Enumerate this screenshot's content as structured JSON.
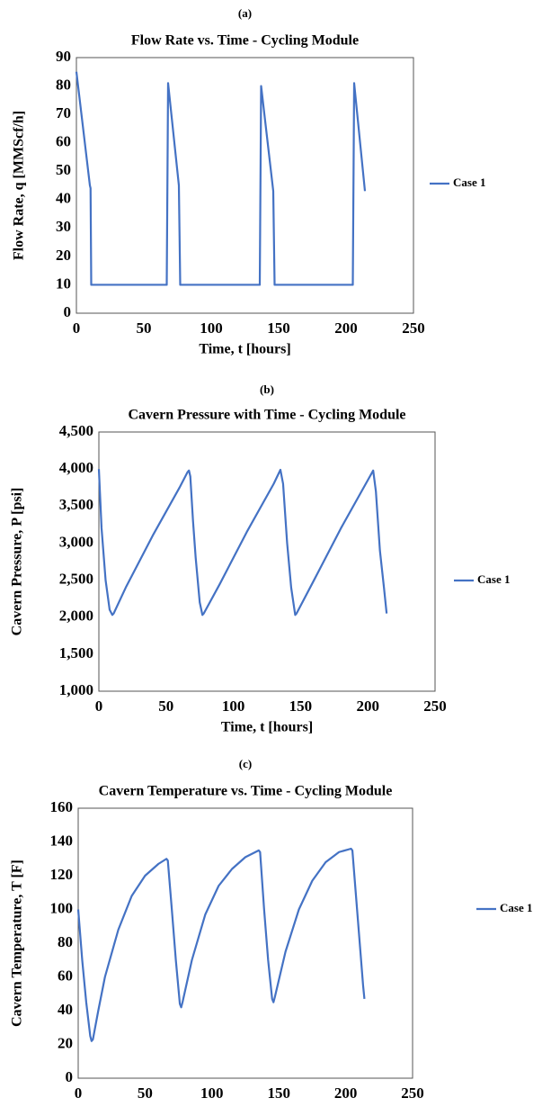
{
  "chart_data": [
    {
      "type": "line",
      "panel_label": "(a)",
      "title": "Flow Rate vs. Time - Cycling Module",
      "x_label": "Time, t [hours]",
      "y_label": "Flow Rate, q [MMScf/h]",
      "xlim": [
        0,
        250
      ],
      "xticks": [
        0,
        50,
        100,
        150,
        200,
        250
      ],
      "ylim": [
        0,
        90
      ],
      "yticks": [
        0,
        10,
        20,
        30,
        40,
        50,
        60,
        70,
        80,
        90
      ],
      "grid": false,
      "x": [
        0,
        10,
        10.5,
        11,
        67,
        68,
        76,
        77,
        136,
        137,
        146,
        147,
        205,
        206,
        214
      ],
      "series": [
        {
          "name": "Case 1",
          "color": "#4472c4",
          "values": [
            85,
            45,
            44,
            10,
            10,
            81,
            45,
            10,
            10,
            80,
            43,
            10,
            10,
            81,
            43
          ]
        }
      ]
    },
    {
      "type": "line",
      "panel_label": "(b)",
      "title": "Cavern Pressure with Time - Cycling Module",
      "x_label": "Time, t [hours]",
      "y_label": "Cavern Pressure, P [psi]",
      "xlim": [
        0,
        250
      ],
      "xticks": [
        0,
        50,
        100,
        150,
        200,
        250
      ],
      "ylim": [
        1000,
        4500
      ],
      "yticks": [
        {
          "value": 1000,
          "label": "1,000"
        },
        {
          "value": 1500,
          "label": "1,500"
        },
        {
          "value": 2000,
          "label": "2,000"
        },
        {
          "value": 2500,
          "label": "2,500"
        },
        {
          "value": 3000,
          "label": "3,000"
        },
        {
          "value": 3500,
          "label": "3,500"
        },
        {
          "value": 4000,
          "label": "4,000"
        },
        {
          "value": 4500,
          "label": "4,500"
        }
      ],
      "grid": false,
      "x": [
        0,
        2,
        5,
        8,
        10,
        11,
        20,
        40,
        60,
        66,
        67,
        68,
        70,
        72,
        75,
        77,
        78,
        90,
        110,
        130,
        135,
        137,
        140,
        143,
        146,
        147,
        160,
        180,
        200,
        204,
        206,
        209,
        212,
        214
      ],
      "series": [
        {
          "name": "Case 1",
          "color": "#4472c4",
          "values": [
            4000,
            3200,
            2500,
            2100,
            2030,
            2050,
            2400,
            3100,
            3750,
            3960,
            3980,
            3900,
            3300,
            2800,
            2200,
            2030,
            2050,
            2450,
            3150,
            3800,
            3990,
            3800,
            3000,
            2400,
            2030,
            2050,
            2500,
            3200,
            3850,
            3980,
            3700,
            2900,
            2400,
            2050
          ]
        }
      ]
    },
    {
      "type": "line",
      "panel_label": "(c)",
      "title": "Cavern Temperature vs. Time - Cycling Module",
      "x_label": "Time, t [hours]",
      "y_label": "Cavern Temperature, T [F]",
      "xlim": [
        0,
        250
      ],
      "xticks": [
        0,
        50,
        100,
        150,
        200,
        250
      ],
      "ylim": [
        0,
        160
      ],
      "yticks": [
        0,
        20,
        40,
        60,
        80,
        100,
        120,
        140,
        160
      ],
      "grid": false,
      "x": [
        0,
        3,
        6,
        9,
        10,
        11,
        15,
        20,
        30,
        40,
        50,
        60,
        66,
        67,
        70,
        73,
        76,
        77,
        78,
        85,
        95,
        105,
        115,
        125,
        135,
        136,
        139,
        142,
        145,
        146,
        147,
        155,
        165,
        175,
        185,
        195,
        204,
        205,
        208,
        211,
        213,
        214
      ],
      "series": [
        {
          "name": "Case 1",
          "color": "#4472c4",
          "values": [
            100,
            70,
            45,
            25,
            22,
            23,
            40,
            60,
            88,
            108,
            120,
            127,
            130,
            129,
            100,
            70,
            44,
            42,
            45,
            70,
            97,
            114,
            124,
            131,
            135,
            134,
            100,
            70,
            47,
            45,
            48,
            75,
            100,
            117,
            128,
            134,
            136,
            135,
            105,
            75,
            55,
            47
          ]
        }
      ]
    }
  ]
}
